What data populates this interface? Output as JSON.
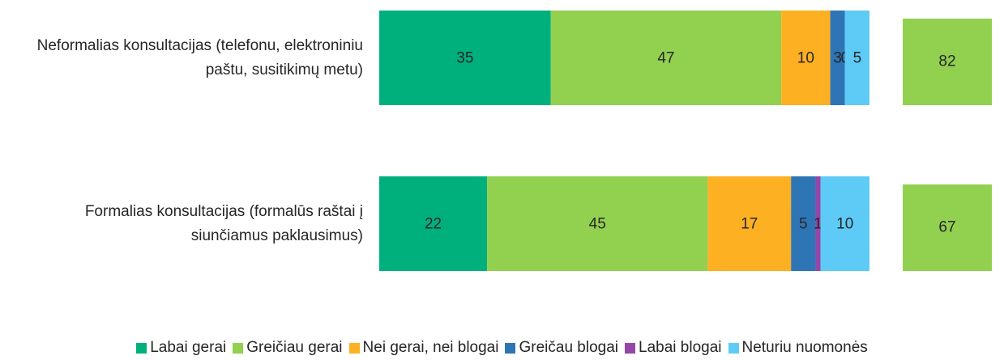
{
  "chart_data": {
    "type": "stacked_bar_horizontal",
    "categories": [
      "Neformalias konsultacijas (telefonu, elektroniniu paštu, susitikimų metu)",
      "Formalias konsultacijas (formalūs raštai į siunčiamus paklausimus)"
    ],
    "xlim": [
      0,
      100
    ],
    "series": [
      {
        "name": "Labai gerai",
        "color": "#00b07c",
        "values": [
          35,
          22
        ]
      },
      {
        "name": "Greičiau gerai",
        "color": "#92d050",
        "values": [
          47,
          45
        ]
      },
      {
        "name": "Nei gerai, nei blogai",
        "color": "#fdb022",
        "values": [
          10,
          17
        ]
      },
      {
        "name": "Greičau blogai",
        "color": "#2e75b6",
        "values": [
          3,
          5
        ]
      },
      {
        "name": "Labai blogai",
        "color": "#9646a8",
        "values": [
          0,
          1
        ]
      },
      {
        "name": "Neturiu nuomonės",
        "color": "#5ecbf6",
        "values": [
          5,
          10
        ]
      }
    ],
    "totals": {
      "color": "#92d050",
      "values": [
        82,
        67
      ]
    },
    "legend": "bottom"
  }
}
